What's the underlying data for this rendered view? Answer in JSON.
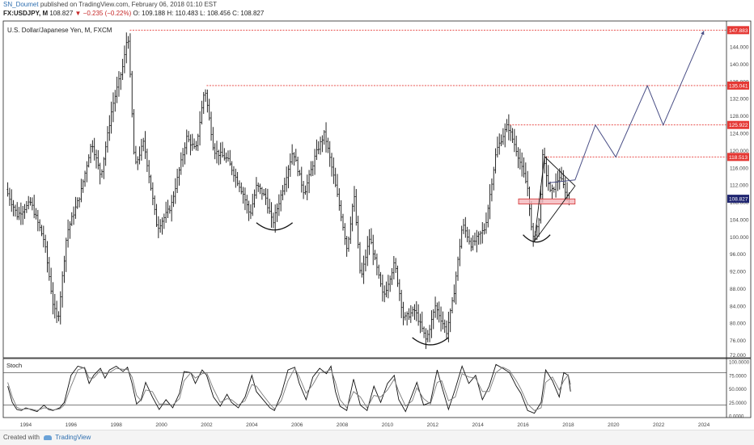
{
  "header": {
    "author": "SN_Doumet",
    "published_text": "published on TradingView.com, February 06, 2018 01:10 EST",
    "symbol": "FX:USDJPY, M",
    "last": "108.827",
    "change": "−0.235 (−0.22%)",
    "open": "O: 109.188",
    "high": "H: 110.483",
    "low": "L: 108.456",
    "close": "C: 108.827"
  },
  "footer": {
    "created_with": "Created with",
    "brand": "TradingView"
  },
  "chart_data": [
    {
      "type": "bar",
      "subtype": "ohlc-monthly",
      "title": "U.S. Dollar/Japanese Yen, M, FXCM",
      "symbol": "FX:USDJPY",
      "interval": "M",
      "x_range": [
        1993.0,
        2025.0
      ],
      "ylim": [
        72,
        150
      ],
      "x_ticks": [
        "1994",
        "1996",
        "1998",
        "2000",
        "2002",
        "2004",
        "2006",
        "2008",
        "2010",
        "2012",
        "2014",
        "2016",
        "2018",
        "2020",
        "2022",
        "2024"
      ],
      "y_ticks": [
        "76.000",
        "80.000",
        "84.000",
        "88.000",
        "92.000",
        "96.000",
        "100.000",
        "104.000",
        "108.000",
        "112.000",
        "116.000",
        "120.000",
        "124.000",
        "128.000",
        "132.000",
        "136.000",
        "140.000",
        "144.000"
      ],
      "y_bottom_label": "72.000",
      "price_path": [
        [
          1993.2,
          111
        ],
        [
          1993.7,
          105
        ],
        [
          1994.3,
          108
        ],
        [
          1994.9,
          99
        ],
        [
          1995.3,
          84
        ],
        [
          1995.5,
          80.5
        ],
        [
          1995.9,
          101
        ],
        [
          1996.5,
          110
        ],
        [
          1997.0,
          122
        ],
        [
          1997.4,
          114
        ],
        [
          1997.9,
          130
        ],
        [
          1998.4,
          140
        ],
        [
          1998.6,
          147.6
        ],
        [
          1998.9,
          116
        ],
        [
          1999.3,
          122
        ],
        [
          1999.9,
          102
        ],
        [
          2000.5,
          107
        ],
        [
          2001.2,
          123
        ],
        [
          2001.6,
          120
        ],
        [
          2002.0,
          134.7
        ],
        [
          2002.4,
          120
        ],
        [
          2003.0,
          118
        ],
        [
          2003.7,
          110
        ],
        [
          2004.0,
          105
        ],
        [
          2004.3,
          112
        ],
        [
          2004.7,
          109
        ],
        [
          2005.0,
          103
        ],
        [
          2005.5,
          112
        ],
        [
          2005.9,
          120
        ],
        [
          2006.4,
          110
        ],
        [
          2006.9,
          119
        ],
        [
          2007.3,
          124
        ],
        [
          2007.7,
          114
        ],
        [
          2008.0,
          106
        ],
        [
          2008.3,
          97
        ],
        [
          2008.6,
          110
        ],
        [
          2008.9,
          90
        ],
        [
          2009.3,
          100
        ],
        [
          2009.9,
          86
        ],
        [
          2010.4,
          94
        ],
        [
          2010.8,
          81
        ],
        [
          2011.3,
          83
        ],
        [
          2011.8,
          76
        ],
        [
          2012.2,
          84
        ],
        [
          2012.7,
          78
        ],
        [
          2013.0,
          86
        ],
        [
          2013.4,
          103
        ],
        [
          2013.8,
          98
        ],
        [
          2014.4,
          102
        ],
        [
          2014.9,
          120
        ],
        [
          2015.4,
          125.9
        ],
        [
          2015.8,
          120
        ],
        [
          2016.3,
          111
        ],
        [
          2016.5,
          99
        ],
        [
          2016.8,
          104
        ],
        [
          2016.95,
          118.5
        ],
        [
          2017.3,
          110
        ],
        [
          2017.7,
          114
        ],
        [
          2018.1,
          108.8
        ]
      ],
      "projection": [
        [
          2017.1,
          112.5
        ],
        [
          2018.3,
          113.2
        ],
        [
          2019.2,
          125.9
        ],
        [
          2020.1,
          118.5
        ],
        [
          2021.5,
          135.0
        ],
        [
          2022.2,
          125.9
        ],
        [
          2024.0,
          147.7
        ]
      ],
      "resistance_levels": [
        {
          "value": 147.883,
          "label": "147.883",
          "x_start": 1998.6
        },
        {
          "value": 135.041,
          "label": "135.041",
          "x_start": 2002.0
        },
        {
          "value": 125.922,
          "label": "125.922",
          "x_start": 2015.4
        },
        {
          "value": 118.513,
          "label": "118.513",
          "x_start": 2016.95
        }
      ],
      "current_price": {
        "value": 108.827,
        "label": "108.827"
      },
      "support_zone": {
        "x_range": [
          2015.8,
          2018.3
        ],
        "y_range": [
          107.6,
          108.8
        ]
      },
      "triangle": {
        "apex_top": [
          2016.95,
          118.6
        ],
        "apex_right": [
          2018.3,
          111.8
        ],
        "bottom": [
          2016.5,
          99
        ]
      },
      "bowls": [
        {
          "x_center": 2005.0,
          "y_bottom": 101.6,
          "half_width": 0.8
        },
        {
          "x_center": 2011.9,
          "y_bottom": 75.0,
          "half_width": 0.8
        },
        {
          "x_center": 2016.6,
          "y_bottom": 98.8,
          "half_width": 0.6
        }
      ],
      "colors": {
        "bars": "#111111",
        "resistance": "#e53935",
        "current_price": "#1f2570",
        "projection": "#4a4f86",
        "zone_fill": "#f4b7bb",
        "zone_stroke": "#d32f2f"
      }
    },
    {
      "type": "line",
      "title": "Stoch",
      "ylim": [
        0,
        100
      ],
      "y_ticks": [
        "100.0000",
        "75.0000",
        "50.0000",
        "25.0000",
        "0.0000"
      ],
      "upper_band": 80,
      "lower_band": 20,
      "series": [
        {
          "color": "#111111",
          "points": [
            [
              1993.2,
              55
            ],
            [
              1993.4,
              25
            ],
            [
              1993.6,
              12
            ],
            [
              1993.8,
              10
            ],
            [
              1994.0,
              15
            ],
            [
              1994.2,
              12
            ],
            [
              1994.5,
              8
            ],
            [
              1994.8,
              20
            ],
            [
              1995.0,
              12
            ],
            [
              1995.2,
              10
            ],
            [
              1995.5,
              15
            ],
            [
              1995.7,
              25
            ],
            [
              1996.0,
              75
            ],
            [
              1996.3,
              92
            ],
            [
              1996.6,
              88
            ],
            [
              1996.8,
              60
            ],
            [
              1997.0,
              75
            ],
            [
              1997.3,
              88
            ],
            [
              1997.5,
              70
            ],
            [
              1997.7,
              85
            ],
            [
              1998.0,
              92
            ],
            [
              1998.3,
              82
            ],
            [
              1998.5,
              90
            ],
            [
              1998.7,
              60
            ],
            [
              1998.9,
              22
            ],
            [
              1999.1,
              30
            ],
            [
              1999.3,
              62
            ],
            [
              1999.6,
              35
            ],
            [
              1999.9,
              12
            ],
            [
              2000.2,
              30
            ],
            [
              2000.5,
              15
            ],
            [
              2000.8,
              42
            ],
            [
              2001.0,
              82
            ],
            [
              2001.3,
              80
            ],
            [
              2001.5,
              60
            ],
            [
              2001.8,
              85
            ],
            [
              2002.0,
              75
            ],
            [
              2002.3,
              35
            ],
            [
              2002.6,
              18
            ],
            [
              2002.9,
              40
            ],
            [
              2003.1,
              25
            ],
            [
              2003.4,
              15
            ],
            [
              2003.7,
              35
            ],
            [
              2004.0,
              75
            ],
            [
              2004.2,
              45
            ],
            [
              2004.5,
              30
            ],
            [
              2004.8,
              15
            ],
            [
              2005.0,
              10
            ],
            [
              2005.3,
              40
            ],
            [
              2005.6,
              85
            ],
            [
              2005.9,
              90
            ],
            [
              2006.1,
              60
            ],
            [
              2006.4,
              30
            ],
            [
              2006.7,
              72
            ],
            [
              2007.0,
              88
            ],
            [
              2007.3,
              78
            ],
            [
              2007.5,
              92
            ],
            [
              2007.7,
              45
            ],
            [
              2007.9,
              18
            ],
            [
              2008.2,
              10
            ],
            [
              2008.5,
              68
            ],
            [
              2008.8,
              20
            ],
            [
              2009.1,
              10
            ],
            [
              2009.4,
              55
            ],
            [
              2009.7,
              25
            ],
            [
              2010.0,
              60
            ],
            [
              2010.3,
              75
            ],
            [
              2010.5,
              30
            ],
            [
              2010.8,
              8
            ],
            [
              2011.1,
              40
            ],
            [
              2011.3,
              62
            ],
            [
              2011.6,
              20
            ],
            [
              2011.9,
              25
            ],
            [
              2012.2,
              85
            ],
            [
              2012.4,
              55
            ],
            [
              2012.7,
              12
            ],
            [
              2013.0,
              50
            ],
            [
              2013.3,
              92
            ],
            [
              2013.6,
              60
            ],
            [
              2013.9,
              75
            ],
            [
              2014.2,
              30
            ],
            [
              2014.5,
              55
            ],
            [
              2014.8,
              95
            ],
            [
              2015.1,
              88
            ],
            [
              2015.4,
              80
            ],
            [
              2015.7,
              55
            ],
            [
              2015.9,
              42
            ],
            [
              2016.2,
              10
            ],
            [
              2016.5,
              5
            ],
            [
              2016.8,
              25
            ],
            [
              2017.0,
              85
            ],
            [
              2017.3,
              65
            ],
            [
              2017.6,
              35
            ],
            [
              2017.8,
              80
            ],
            [
              2018.0,
              75
            ],
            [
              2018.1,
              45
            ]
          ]
        },
        {
          "color": "#7a7a7a",
          "points": [
            [
              1993.2,
              62
            ],
            [
              1993.4,
              35
            ],
            [
              1993.6,
              16
            ],
            [
              1993.8,
              12
            ],
            [
              1994.0,
              13
            ],
            [
              1994.2,
              13
            ],
            [
              1994.5,
              10
            ],
            [
              1994.8,
              15
            ],
            [
              1995.0,
              14
            ],
            [
              1995.2,
              11
            ],
            [
              1995.5,
              13
            ],
            [
              1995.7,
              20
            ],
            [
              1996.0,
              55
            ],
            [
              1996.3,
              85
            ],
            [
              1996.6,
              90
            ],
            [
              1996.8,
              70
            ],
            [
              1997.0,
              70
            ],
            [
              1997.3,
              84
            ],
            [
              1997.5,
              78
            ],
            [
              1997.7,
              80
            ],
            [
              1998.0,
              88
            ],
            [
              1998.3,
              86
            ],
            [
              1998.5,
              86
            ],
            [
              1998.7,
              72
            ],
            [
              1998.9,
              38
            ],
            [
              1999.1,
              28
            ],
            [
              1999.3,
              48
            ],
            [
              1999.6,
              45
            ],
            [
              1999.9,
              22
            ],
            [
              2000.2,
              22
            ],
            [
              2000.5,
              20
            ],
            [
              2000.8,
              32
            ],
            [
              2001.0,
              65
            ],
            [
              2001.3,
              80
            ],
            [
              2001.5,
              70
            ],
            [
              2001.8,
              78
            ],
            [
              2002.0,
              80
            ],
            [
              2002.3,
              50
            ],
            [
              2002.6,
              25
            ],
            [
              2002.9,
              32
            ],
            [
              2003.1,
              30
            ],
            [
              2003.4,
              20
            ],
            [
              2003.7,
              28
            ],
            [
              2004.0,
              58
            ],
            [
              2004.2,
              55
            ],
            [
              2004.5,
              38
            ],
            [
              2004.8,
              22
            ],
            [
              2005.0,
              13
            ],
            [
              2005.3,
              28
            ],
            [
              2005.6,
              65
            ],
            [
              2005.9,
              88
            ],
            [
              2006.1,
              72
            ],
            [
              2006.4,
              42
            ],
            [
              2006.7,
              58
            ],
            [
              2007.0,
              80
            ],
            [
              2007.3,
              82
            ],
            [
              2007.5,
              86
            ],
            [
              2007.7,
              62
            ],
            [
              2007.9,
              30
            ],
            [
              2008.2,
              15
            ],
            [
              2008.5,
              45
            ],
            [
              2008.8,
              35
            ],
            [
              2009.1,
              15
            ],
            [
              2009.4,
              38
            ],
            [
              2009.7,
              35
            ],
            [
              2010.0,
              48
            ],
            [
              2010.3,
              68
            ],
            [
              2010.5,
              45
            ],
            [
              2010.8,
              18
            ],
            [
              2011.1,
              28
            ],
            [
              2011.3,
              52
            ],
            [
              2011.6,
              32
            ],
            [
              2011.9,
              22
            ],
            [
              2012.2,
              62
            ],
            [
              2012.4,
              65
            ],
            [
              2012.7,
              28
            ],
            [
              2013.0,
              35
            ],
            [
              2013.3,
              78
            ],
            [
              2013.6,
              72
            ],
            [
              2013.9,
              70
            ],
            [
              2014.2,
              45
            ],
            [
              2014.5,
              45
            ],
            [
              2014.8,
              80
            ],
            [
              2015.1,
              90
            ],
            [
              2015.4,
              84
            ],
            [
              2015.7,
              65
            ],
            [
              2015.9,
              50
            ],
            [
              2016.2,
              22
            ],
            [
              2016.5,
              10
            ],
            [
              2016.8,
              15
            ],
            [
              2017.0,
              62
            ],
            [
              2017.3,
              72
            ],
            [
              2017.6,
              48
            ],
            [
              2017.8,
              65
            ],
            [
              2018.0,
              76
            ],
            [
              2018.1,
              58
            ]
          ]
        }
      ]
    }
  ]
}
